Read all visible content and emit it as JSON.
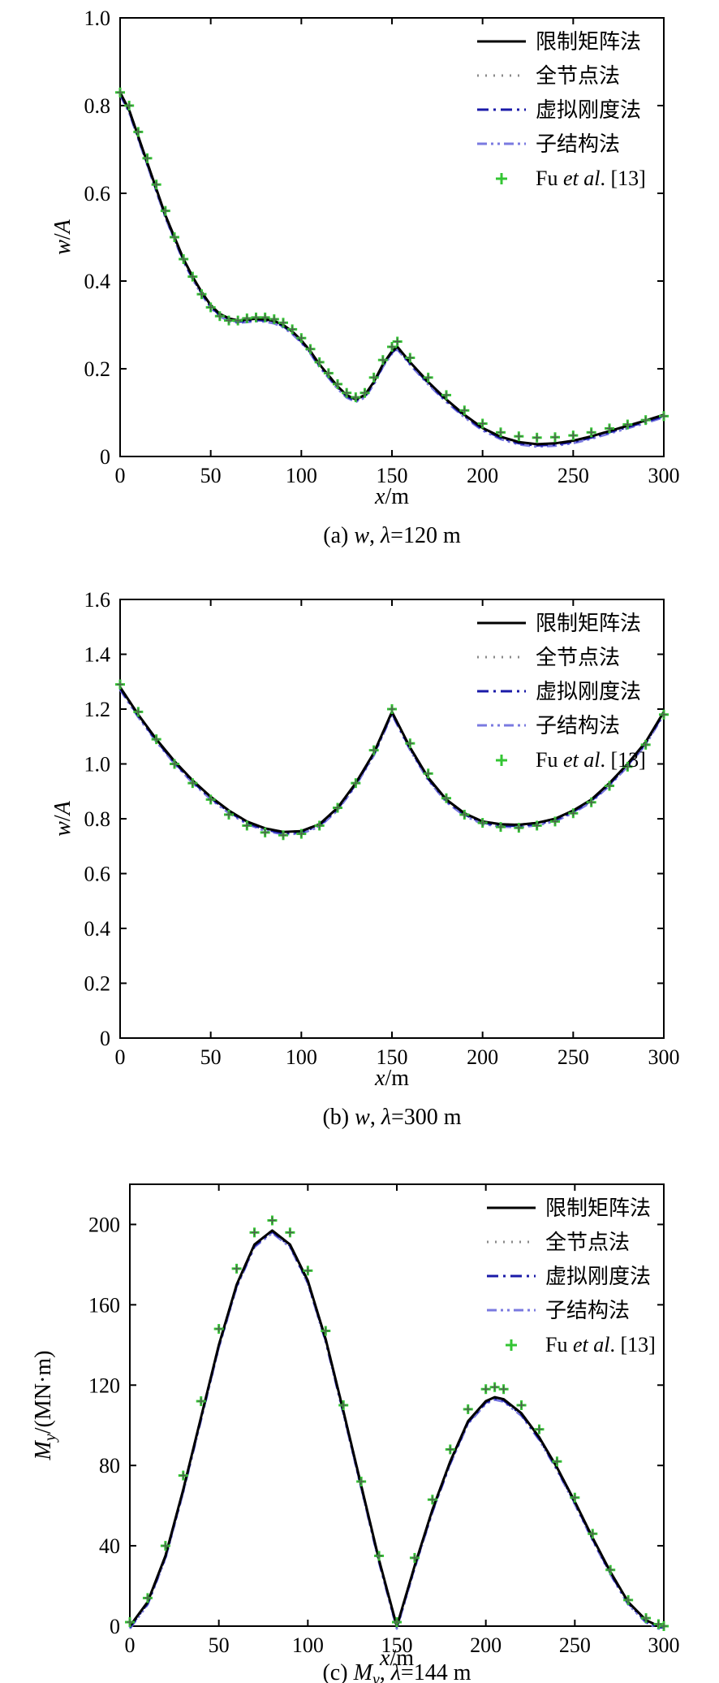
{
  "legend": [
    {
      "key": "rm",
      "label": "限制矩阵法",
      "color": "#000000",
      "style": "solid"
    },
    {
      "key": "fn",
      "label": "全节点法",
      "color": "#8a8a8a",
      "style": "dotted"
    },
    {
      "key": "vs",
      "label": "虚拟刚度法",
      "color": "#1a1aa8",
      "style": "dashdot"
    },
    {
      "key": "ss",
      "label": "子结构法",
      "color": "#7a7ae0",
      "style": "dashdotdot"
    },
    {
      "key": "fu",
      "label_prefix": "Fu ",
      "label_italic": "et al",
      "label_suffix": ". [13]",
      "color": "#33c533",
      "style": "markers"
    }
  ],
  "chart_data": [
    {
      "type": "line",
      "caption": {
        "prefix": "(a) ",
        "var": "w",
        "sep": ", ",
        "lambda": "λ",
        "suffix": "=120 m"
      },
      "xlabel": {
        "var": "x",
        "unit": "/m"
      },
      "ylabel": {
        "var": "w",
        "sep": "/",
        "var2": "A"
      },
      "xlim": [
        0,
        300
      ],
      "ylim": [
        0,
        1.0
      ],
      "xticks": [
        0,
        50,
        100,
        150,
        200,
        250,
        300
      ],
      "yticks": [
        0,
        0.2,
        0.4,
        0.6,
        0.8,
        1.0
      ],
      "ytick_labels": [
        "0",
        "0.2",
        "0.4",
        "0.6",
        "0.8",
        "1.0"
      ],
      "x": [
        0,
        5,
        10,
        15,
        20,
        25,
        30,
        35,
        40,
        45,
        50,
        55,
        60,
        65,
        70,
        75,
        80,
        85,
        90,
        95,
        100,
        105,
        110,
        115,
        120,
        125,
        130,
        135,
        140,
        145,
        150,
        153,
        160,
        170,
        180,
        190,
        200,
        210,
        220,
        230,
        240,
        250,
        260,
        270,
        280,
        290,
        300
      ],
      "series": [
        {
          "name": "限制矩阵法",
          "values": [
            0.83,
            0.79,
            0.73,
            0.67,
            0.61,
            0.55,
            0.5,
            0.45,
            0.41,
            0.375,
            0.345,
            0.325,
            0.315,
            0.31,
            0.312,
            0.314,
            0.313,
            0.309,
            0.3,
            0.285,
            0.265,
            0.24,
            0.21,
            0.185,
            0.16,
            0.14,
            0.13,
            0.14,
            0.17,
            0.21,
            0.24,
            0.25,
            0.215,
            0.17,
            0.13,
            0.095,
            0.065,
            0.045,
            0.033,
            0.028,
            0.03,
            0.036,
            0.046,
            0.058,
            0.07,
            0.082,
            0.095
          ]
        },
        {
          "name": "Fu et al. [13]",
          "values": [
            0.83,
            0.8,
            0.74,
            0.68,
            0.62,
            0.56,
            0.5,
            0.45,
            0.41,
            0.37,
            0.34,
            0.32,
            0.31,
            0.31,
            0.315,
            0.317,
            0.317,
            0.313,
            0.305,
            0.29,
            0.27,
            0.245,
            0.215,
            0.19,
            0.165,
            0.145,
            0.135,
            0.145,
            0.18,
            0.22,
            0.25,
            0.262,
            0.225,
            0.18,
            0.14,
            0.105,
            0.075,
            0.055,
            0.046,
            0.043,
            0.044,
            0.048,
            0.055,
            0.064,
            0.073,
            0.083,
            0.092
          ]
        }
      ]
    },
    {
      "type": "line",
      "caption": {
        "prefix": "(b) ",
        "var": "w",
        "sep": ", ",
        "lambda": "λ",
        "suffix": "=300 m"
      },
      "xlabel": {
        "var": "x",
        "unit": "/m"
      },
      "ylabel": {
        "var": "w",
        "sep": "/",
        "var2": "A"
      },
      "xlim": [
        0,
        300
      ],
      "ylim": [
        0,
        1.6
      ],
      "xticks": [
        0,
        50,
        100,
        150,
        200,
        250,
        300
      ],
      "yticks": [
        0,
        0.2,
        0.4,
        0.6,
        0.8,
        1.0,
        1.2,
        1.4,
        1.6
      ],
      "ytick_labels": [
        "0",
        "0.2",
        "0.4",
        "0.6",
        "0.8",
        "1.0",
        "1.2",
        "1.4",
        "1.6"
      ],
      "x": [
        0,
        10,
        20,
        30,
        40,
        50,
        60,
        70,
        80,
        90,
        100,
        110,
        120,
        130,
        140,
        150,
        160,
        170,
        180,
        190,
        200,
        210,
        220,
        230,
        240,
        250,
        260,
        270,
        280,
        290,
        300
      ],
      "series": [
        {
          "name": "限制矩阵法",
          "values": [
            1.28,
            1.18,
            1.09,
            1.01,
            0.94,
            0.88,
            0.83,
            0.79,
            0.765,
            0.752,
            0.755,
            0.78,
            0.84,
            0.93,
            1.04,
            1.19,
            1.06,
            0.95,
            0.87,
            0.82,
            0.79,
            0.78,
            0.778,
            0.785,
            0.8,
            0.83,
            0.87,
            0.93,
            1.0,
            1.08,
            1.19
          ]
        },
        {
          "name": "Fu et al. [13]",
          "values": [
            1.29,
            1.19,
            1.09,
            1.0,
            0.93,
            0.87,
            0.815,
            0.775,
            0.75,
            0.74,
            0.745,
            0.775,
            0.84,
            0.93,
            1.05,
            1.2,
            1.075,
            0.965,
            0.875,
            0.815,
            0.785,
            0.77,
            0.767,
            0.775,
            0.79,
            0.82,
            0.86,
            0.92,
            0.99,
            1.07,
            1.18
          ]
        }
      ]
    },
    {
      "type": "line",
      "caption": {
        "prefix": "(c) ",
        "var": "M",
        "sub": "y",
        "sep": ", ",
        "lambda": "λ",
        "suffix": "=144 m"
      },
      "xlabel": {
        "var": "x",
        "unit": "/m"
      },
      "ylabel": {
        "var": "M",
        "sub": "y",
        "unit": "/(MN·m)"
      },
      "xlim": [
        0,
        300
      ],
      "ylim": [
        0,
        220
      ],
      "xticks": [
        0,
        50,
        100,
        150,
        200,
        250,
        300
      ],
      "yticks": [
        0,
        40,
        80,
        120,
        160,
        200
      ],
      "ytick_labels": [
        "0",
        "40",
        "80",
        "120",
        "160",
        "200"
      ],
      "x": [
        0,
        10,
        20,
        30,
        40,
        50,
        60,
        70,
        80,
        90,
        100,
        110,
        120,
        130,
        140,
        150,
        160,
        170,
        180,
        190,
        200,
        205,
        210,
        220,
        230,
        240,
        250,
        260,
        270,
        280,
        290,
        297,
        300
      ],
      "series": [
        {
          "name": "限制矩阵法",
          "values": [
            0,
            12,
            35,
            68,
            104,
            140,
            170,
            190,
            197,
            190,
            172,
            143,
            107,
            70,
            33,
            0,
            30,
            58,
            82,
            102,
            112,
            114,
            113,
            106,
            94,
            79,
            62,
            44,
            27,
            12,
            3,
            0,
            0
          ]
        },
        {
          "name": "Fu et al. [13]",
          "values": [
            2,
            14,
            40,
            75,
            112,
            148,
            178,
            196,
            202,
            196,
            177,
            147,
            110,
            72,
            35,
            2,
            34,
            63,
            88,
            108,
            118,
            119,
            118,
            110,
            98,
            82,
            64,
            46,
            28,
            13,
            4,
            1,
            0
          ]
        }
      ]
    }
  ]
}
